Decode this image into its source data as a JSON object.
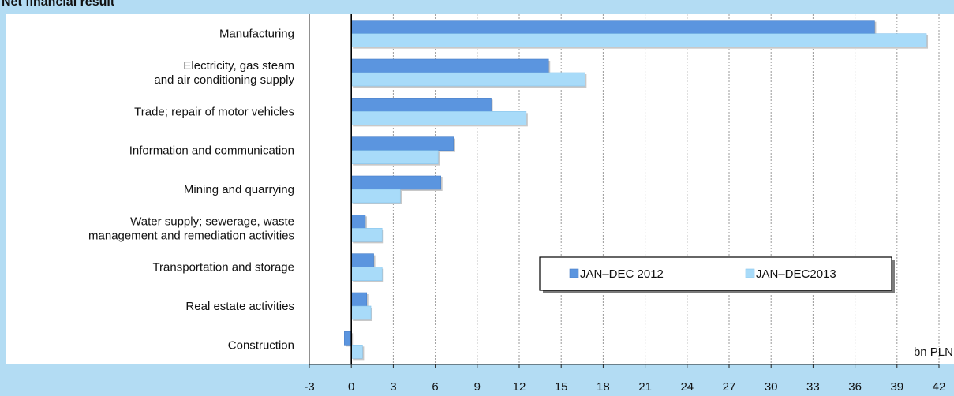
{
  "header": {
    "title": "Net financial result"
  },
  "chart_data": {
    "type": "bar",
    "orientation": "horizontal",
    "title": "Net financial result",
    "unit_label": "bn PLN",
    "categories": [
      [
        "Manufacturing"
      ],
      [
        "Electricity, gas steam",
        "and air conditioning supply"
      ],
      [
        "Trade; repair of motor vehicles"
      ],
      [
        "Information and communication"
      ],
      [
        "Mining and quarrying"
      ],
      [
        "Water supply; sewerage, waste",
        "management and remediation activities"
      ],
      [
        "Transportation and storage"
      ],
      [
        "Real estate activities"
      ],
      [
        "Construction"
      ]
    ],
    "series": [
      {
        "name": "JAN–DEC 2012",
        "color": "#5b95df",
        "values": [
          37.4,
          14.1,
          10.0,
          7.3,
          6.4,
          1.0,
          1.6,
          1.1,
          -0.5
        ]
      },
      {
        "name": "JAN–DEC2013",
        "color": "#a8dbf9",
        "values": [
          41.1,
          16.7,
          12.5,
          6.2,
          3.5,
          2.2,
          2.2,
          1.4,
          0.8
        ]
      }
    ],
    "xlim": [
      -3,
      42
    ],
    "xticks": [
      -3,
      0,
      3,
      6,
      9,
      12,
      15,
      18,
      21,
      24,
      27,
      30,
      33,
      36,
      39,
      42
    ],
    "grid": "vertical-dashed",
    "legend_position": "lower-right"
  }
}
